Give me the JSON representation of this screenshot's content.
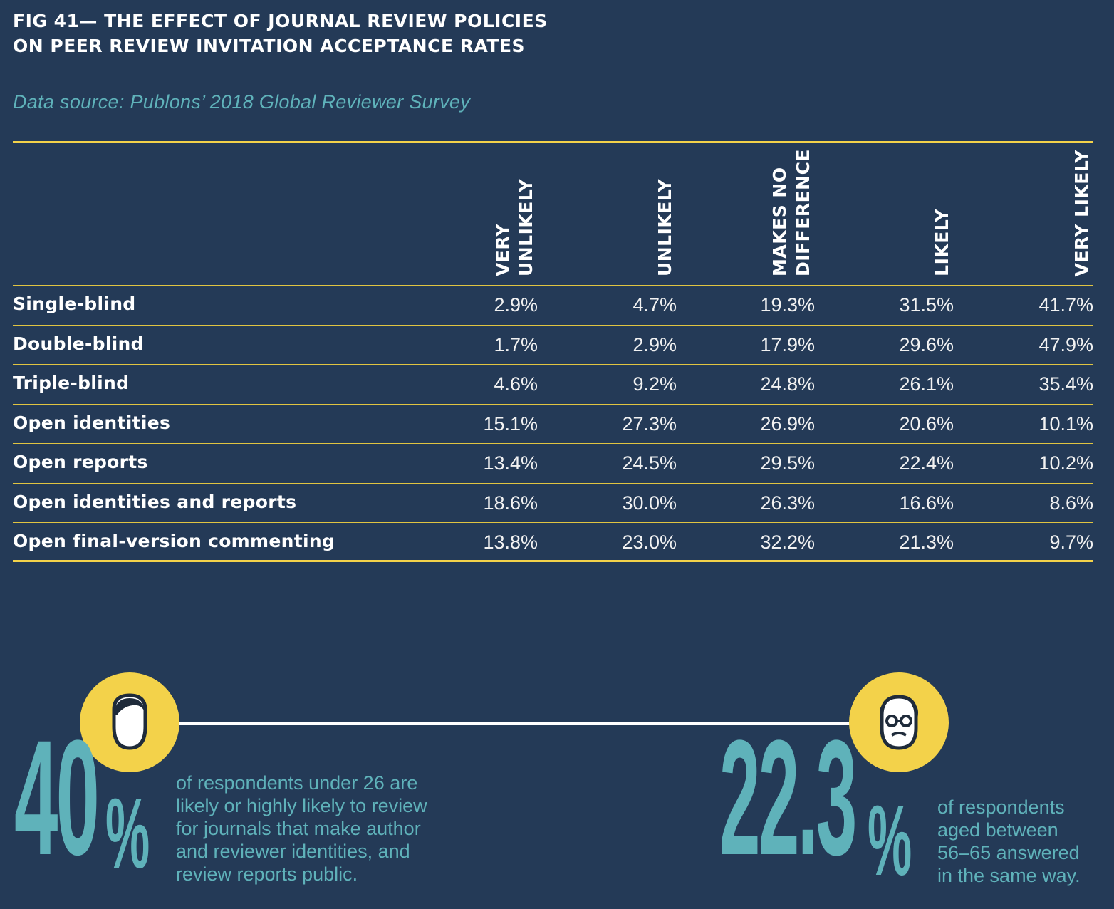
{
  "figure": {
    "title": "FIG 41— THE EFFECT OF JOURNAL REVIEW POLICIES ON PEER REVIEW INVITATION ACCEPTANCE RATES",
    "source": "Data source: Publons’ 2018 Global Reviewer Survey"
  },
  "chart_data": {
    "type": "table",
    "columns": [
      "VERY\nUNLIKELY",
      "UNLIKELY",
      "MAKES NO\nDIFFERENCE",
      "LIKELY",
      "VERY LIKELY"
    ],
    "rows": [
      {
        "label": "Single-blind",
        "values": [
          "2.9%",
          "4.7%",
          "19.3%",
          "31.5%",
          "41.7%"
        ]
      },
      {
        "label": "Double-blind",
        "values": [
          "1.7%",
          "2.9%",
          "17.9%",
          "29.6%",
          "47.9%"
        ]
      },
      {
        "label": "Triple-blind",
        "values": [
          "4.6%",
          "9.2%",
          "24.8%",
          "26.1%",
          "35.4%"
        ]
      },
      {
        "label": "Open identities",
        "values": [
          "15.1%",
          "27.3%",
          "26.9%",
          "20.6%",
          "10.1%"
        ]
      },
      {
        "label": "Open reports",
        "values": [
          "13.4%",
          "24.5%",
          "29.5%",
          "22.4%",
          "10.2%"
        ]
      },
      {
        "label": "Open identities and reports",
        "values": [
          "18.6%",
          "30.0%",
          "26.3%",
          "16.6%",
          "8.6%"
        ]
      },
      {
        "label": "Open final-version commenting",
        "values": [
          "13.8%",
          "23.0%",
          "32.2%",
          "21.3%",
          "9.7%"
        ]
      }
    ]
  },
  "stats": [
    {
      "number": "40",
      "percent": "%",
      "text": "of respondents under 26 are likely or highly likely to review for journals that make author and reviewer identities, and review reports public.",
      "icon": "young-person-icon"
    },
    {
      "number": "22.3",
      "percent": "%",
      "text": "of respondents aged between 56–65 answered in the same way.",
      "icon": "older-person-icon"
    }
  ],
  "colors": {
    "background": "#243a57",
    "accent_yellow": "#f3d24a",
    "teal": "#5fb2ba"
  }
}
